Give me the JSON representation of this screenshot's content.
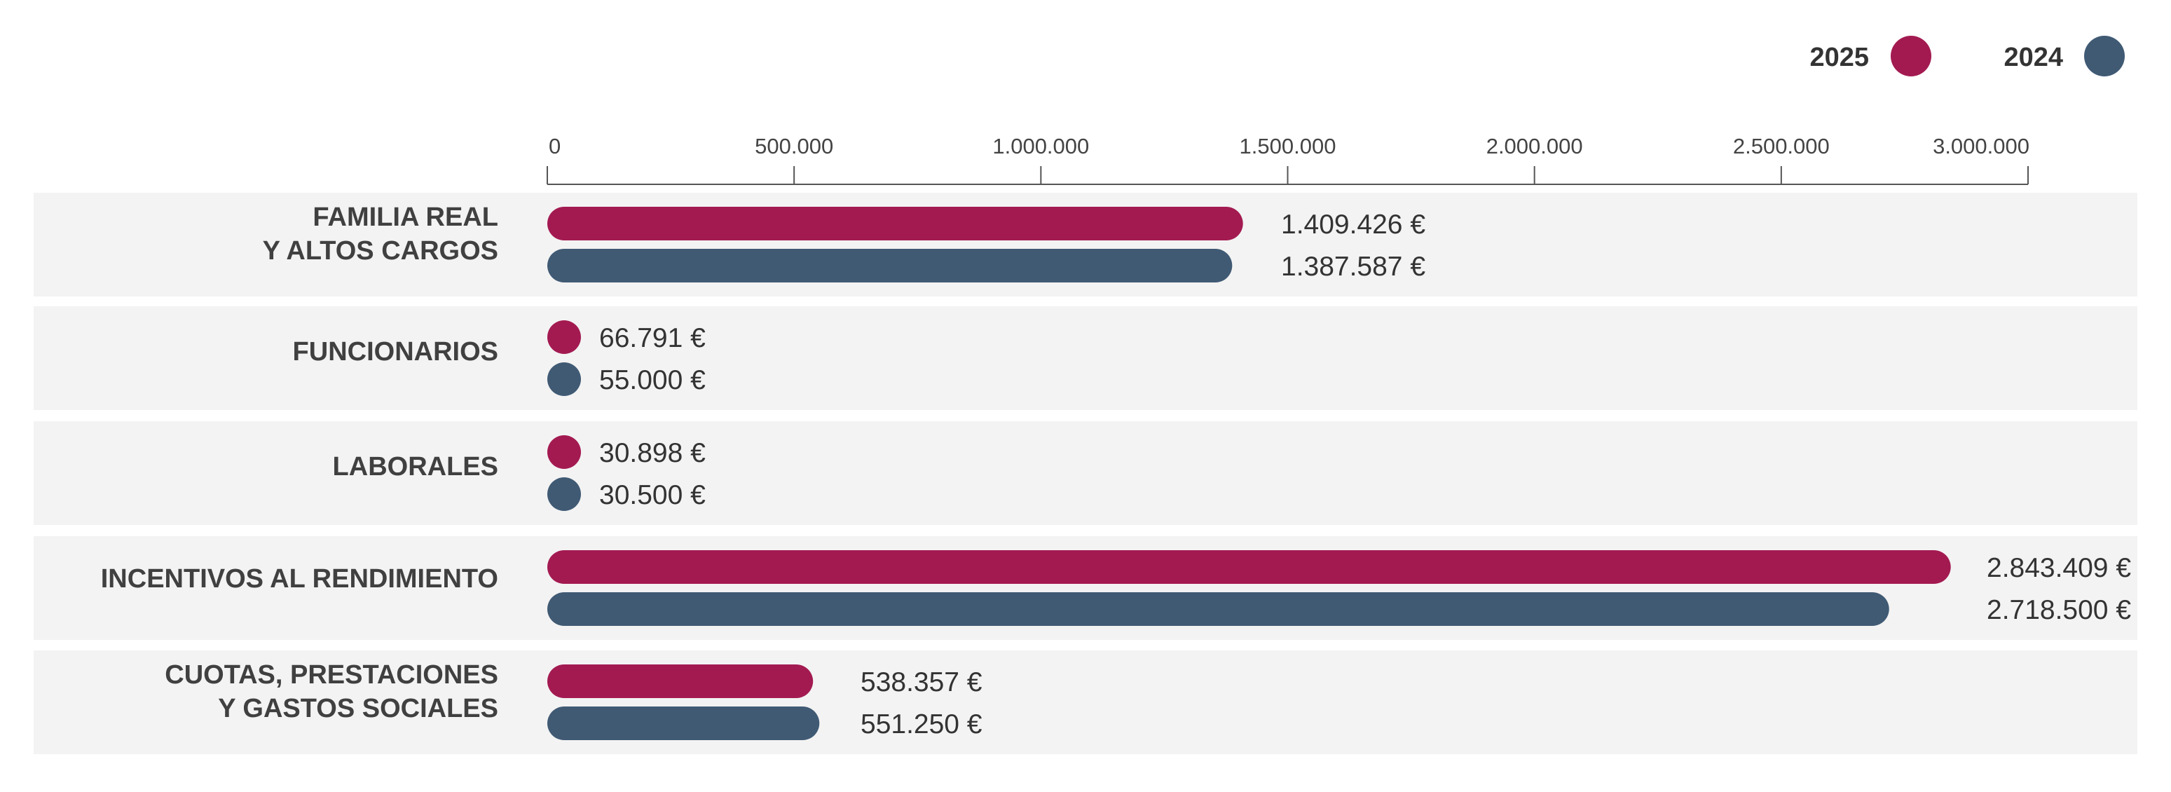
{
  "chart_data": {
    "type": "bar",
    "orientation": "horizontal",
    "categories": [
      "FAMILIA REAL\nY ALTOS CARGOS",
      "FUNCIONARIOS",
      "LABORALES",
      "INCENTIVOS AL RENDIMIENTO",
      "CUOTAS, PRESTACIONES\nY GASTOS SOCIALES"
    ],
    "series": [
      {
        "name": "2025",
        "color": "#a31a51",
        "values": [
          1409426,
          66791,
          30898,
          2843409,
          538357
        ],
        "labels": [
          "1.409.426 €",
          "66.791 €",
          "30.898 €",
          "2.843.409 €",
          "538.357 €"
        ]
      },
      {
        "name": "2024",
        "color": "#405a74",
        "values": [
          1387587,
          55000,
          30500,
          2718500,
          551250
        ],
        "labels": [
          "1.387.587 €",
          "55.000 €",
          "30.500 €",
          "2.718.500 €",
          "551.250 €"
        ]
      }
    ],
    "xlim": [
      0,
      3000000
    ],
    "ticks": [
      0,
      500000,
      1000000,
      1500000,
      2000000,
      2500000,
      3000000
    ],
    "tick_labels": [
      "0",
      "500.000",
      "1.000.000",
      "1.500.000",
      "2.000.000",
      "2.500.000",
      "3.000.000"
    ],
    "axis_position": "top",
    "legend_position": "top-right",
    "title": "",
    "xlabel": "",
    "ylabel": "",
    "row_background": "#f3f3f3",
    "axis_color": "#555555"
  }
}
